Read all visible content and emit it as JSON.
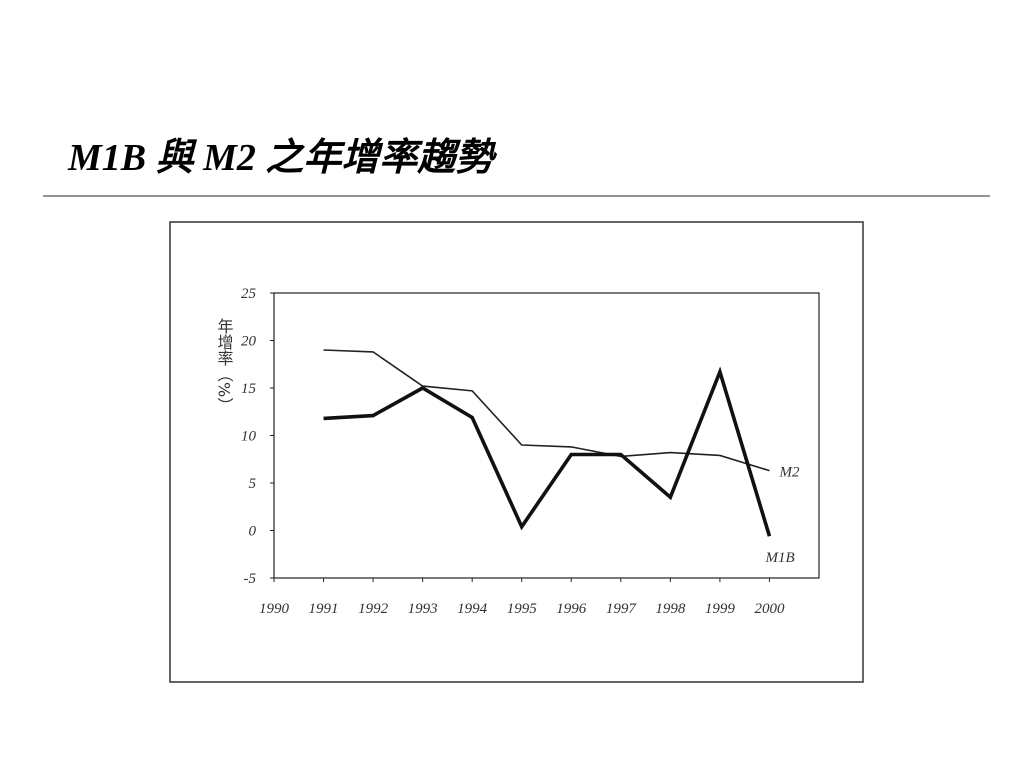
{
  "chart_data": {
    "type": "line",
    "title": "M1B 與 M2 之年增率趨勢",
    "y_label": "年增率（%）",
    "x": [
      1991,
      1992,
      1993,
      1994,
      1995,
      1996,
      1997,
      1998,
      1999,
      2000
    ],
    "xlim": [
      1990,
      2001
    ],
    "xticks": [
      1990,
      1991,
      1992,
      1993,
      1994,
      1995,
      1996,
      1997,
      1998,
      1999,
      2000
    ],
    "ylim": [
      -5,
      25
    ],
    "yticks": [
      -5,
      0,
      5,
      10,
      15,
      20,
      25
    ],
    "grid": false,
    "series": [
      {
        "name": "M2",
        "color": "#222222",
        "values": [
          19.0,
          18.8,
          15.2,
          14.7,
          9.0,
          8.8,
          7.8,
          8.2,
          7.9,
          6.3
        ]
      },
      {
        "name": "M1B",
        "color": "#111111",
        "values": [
          11.8,
          12.1,
          15.0,
          11.9,
          0.4,
          8.0,
          8.0,
          3.5,
          16.7,
          -0.6
        ]
      }
    ]
  }
}
